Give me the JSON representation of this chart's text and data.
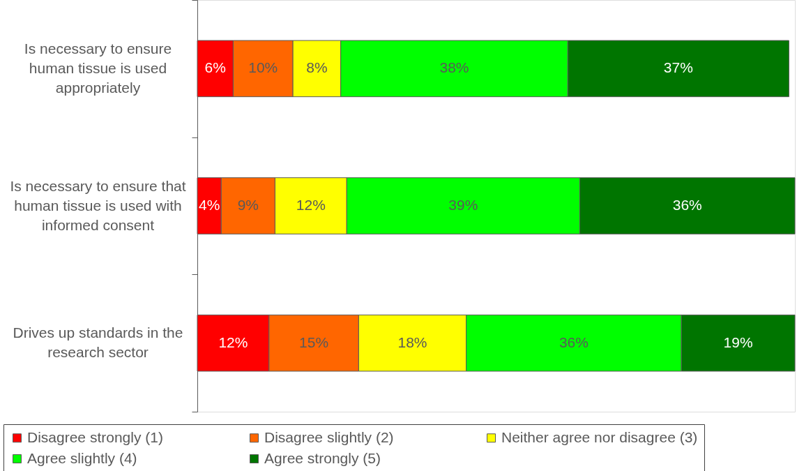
{
  "chart_data": {
    "type": "bar",
    "orientation": "horizontal",
    "stacked": true,
    "categories": [
      "Is necessary to ensure human tissue is used appropriately",
      "Is necessary to ensure that human tissue is used with informed consent",
      "Drives up standards in the research sector"
    ],
    "series": [
      {
        "name": "Disagree strongly (1)",
        "color": "#ff0000",
        "values": [
          6,
          4,
          12
        ],
        "value_labels": [
          "6%",
          "4%",
          "12%"
        ]
      },
      {
        "name": "Disagree slightly (2)",
        "color": "#ff6600",
        "values": [
          10,
          9,
          15
        ],
        "value_labels": [
          "10%",
          "9%",
          "15%"
        ]
      },
      {
        "name": "Neither agree nor disagree (3)",
        "color": "#ffff00",
        "values": [
          8,
          12,
          18
        ],
        "value_labels": [
          "8%",
          "12%",
          "18%"
        ]
      },
      {
        "name": "Agree slightly (4)",
        "color": "#00ff00",
        "values": [
          38,
          39,
          36
        ],
        "value_labels": [
          "38%",
          "39%",
          "36%"
        ]
      },
      {
        "name": "Agree strongly (5)",
        "color": "#007500",
        "values": [
          37,
          36,
          19
        ],
        "value_labels": [
          "37%",
          "36%",
          "19%"
        ]
      }
    ],
    "xlim": [
      0,
      100
    ],
    "tick_labels": "y",
    "legend": "bottom"
  }
}
